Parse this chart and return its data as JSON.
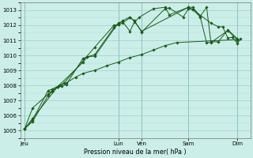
{
  "xlabel": "Pression niveau de la mer( hPa )",
  "ylim": [
    1004.5,
    1013.5
  ],
  "yticks": [
    1005,
    1006,
    1007,
    1008,
    1009,
    1010,
    1011,
    1012,
    1013
  ],
  "xtick_labels": [
    "Jeu",
    "Lun",
    "Ven",
    "Sam",
    "Dim"
  ],
  "xtick_positions": [
    0.0,
    0.44,
    0.55,
    0.77,
    1.0
  ],
  "bg_color": "#cceee8",
  "line_color": "#1a5c1a",
  "grid_color": "#99cccc",
  "series": [
    [
      1005.1,
      1005.6,
      1007.3,
      1007.6,
      1007.9,
      1007.95,
      1008.05,
      1009.8,
      1009.9,
      1010.05,
      1011.85,
      1012.05,
      1012.15,
      1012.5,
      1012.3,
      1011.55,
      1013.1,
      1013.15,
      1012.55,
      1013.1,
      1013.05,
      1012.55,
      1010.85,
      1010.85,
      1011.65,
      1011.0
    ],
    [
      1005.1,
      1006.5,
      1007.4,
      1007.65,
      1007.9,
      1009.55,
      1009.9,
      1009.95,
      1012.15,
      1012.25,
      1011.6,
      1012.2,
      1012.55,
      1013.1,
      1013.2,
      1012.7,
      1013.2,
      1013.05,
      1012.15,
      1011.9,
      1011.9,
      1011.15,
      1011.2,
      1010.8,
      1011.1
    ],
    [
      1005.1,
      1005.8,
      1007.9,
      1008.15,
      1010.55,
      1012.0,
      1012.05,
      1012.3,
      1012.55,
      1012.3,
      1011.6,
      1013.2,
      1013.2,
      1012.6,
      1013.2,
      1010.9,
      1010.9,
      1011.7,
      1011.1
    ],
    [
      1005.1,
      1005.7,
      1007.65,
      1007.75,
      1008.0,
      1008.15,
      1008.55,
      1008.8,
      1009.0,
      1009.3,
      1009.55,
      1009.85,
      1010.05,
      1010.35,
      1010.65,
      1010.85,
      1011.05
    ]
  ],
  "series_x": [
    [
      0.0,
      0.038,
      0.11,
      0.13,
      0.155,
      0.175,
      0.195,
      0.275,
      0.295,
      0.33,
      0.42,
      0.44,
      0.46,
      0.495,
      0.515,
      0.55,
      0.66,
      0.68,
      0.745,
      0.77,
      0.79,
      0.825,
      0.855,
      0.875,
      0.955,
      1.0
    ],
    [
      0.0,
      0.038,
      0.11,
      0.13,
      0.155,
      0.275,
      0.295,
      0.33,
      0.44,
      0.46,
      0.495,
      0.515,
      0.54,
      0.605,
      0.66,
      0.68,
      0.77,
      0.79,
      0.875,
      0.91,
      0.93,
      0.955,
      0.975,
      1.0,
      1.015
    ],
    [
      0.0,
      0.038,
      0.155,
      0.185,
      0.33,
      0.42,
      0.44,
      0.46,
      0.495,
      0.515,
      0.55,
      0.77,
      0.79,
      0.825,
      0.855,
      0.875,
      0.91,
      0.955,
      1.0
    ],
    [
      0.0,
      0.038,
      0.11,
      0.13,
      0.165,
      0.195,
      0.24,
      0.275,
      0.33,
      0.385,
      0.44,
      0.495,
      0.55,
      0.605,
      0.66,
      0.715,
      1.0
    ]
  ]
}
